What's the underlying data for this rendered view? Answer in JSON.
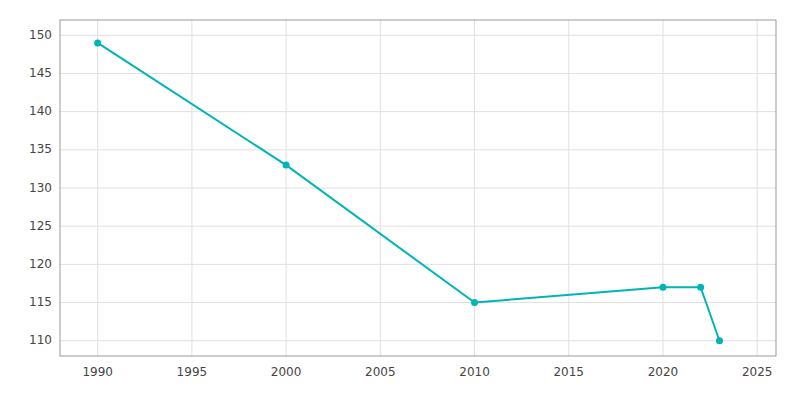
{
  "chart_data": {
    "type": "line",
    "x": [
      1990,
      2000,
      2010,
      2020,
      2022,
      2023
    ],
    "values": [
      149,
      133,
      115,
      117,
      117,
      110
    ],
    "color": "#00B5B5",
    "marker": "circle",
    "xlim": [
      1988,
      2026
    ],
    "ylim": [
      108,
      152
    ],
    "xticks": [
      1990,
      1995,
      2000,
      2005,
      2010,
      2015,
      2020,
      2025
    ],
    "yticks": [
      110,
      115,
      120,
      125,
      130,
      135,
      140,
      145,
      150
    ],
    "grid": true
  }
}
